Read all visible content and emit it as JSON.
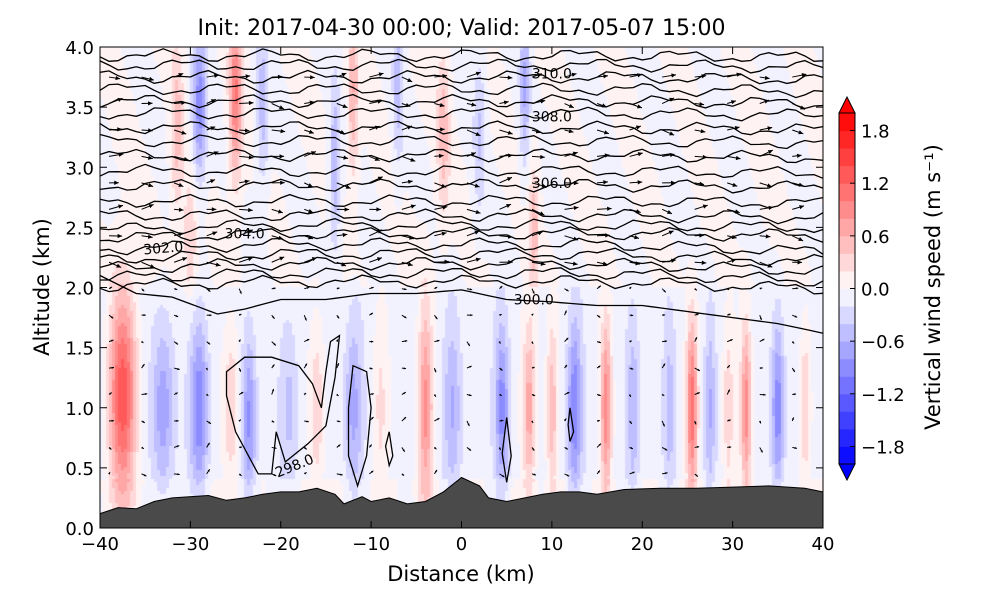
{
  "chart_data": {
    "type": "heatmap",
    "subtype": "filled contour cross-section with isentropes and wind vectors",
    "title": "Init: 2017-04-30 00:00; Valid: 2017-05-07 15:00",
    "xlabel": "Distance (km)",
    "ylabel": "Altitude (km)",
    "xlim": [
      -40,
      40
    ],
    "ylim": [
      0.0,
      4.0
    ],
    "xticks": [
      "−40",
      "−30",
      "−20",
      "−10",
      "0",
      "10",
      "20",
      "30",
      "40"
    ],
    "yticks": [
      "0.0",
      "0.5",
      "1.0",
      "1.5",
      "2.0",
      "2.5",
      "3.0",
      "3.5",
      "4.0"
    ],
    "colorbar": {
      "label": "Vertical wind speed (m s⁻¹)",
      "levels_min": -2.0,
      "levels_max": 2.0,
      "level_step": 0.2,
      "ticks": [
        "−1.8",
        "−1.2",
        "−0.6",
        "0.0",
        "0.6",
        "1.2",
        "1.8"
      ],
      "cmap": "bwr",
      "extend": "both"
    },
    "terrain_km": [
      [
        -40,
        0.12
      ],
      [
        -38,
        0.17
      ],
      [
        -36,
        0.16
      ],
      [
        -34,
        0.22
      ],
      [
        -32,
        0.25
      ],
      [
        -28,
        0.27
      ],
      [
        -26,
        0.23
      ],
      [
        -24,
        0.25
      ],
      [
        -22,
        0.28
      ],
      [
        -20,
        0.3
      ],
      [
        -18,
        0.3
      ],
      [
        -16,
        0.33
      ],
      [
        -14,
        0.28
      ],
      [
        -13,
        0.2
      ],
      [
        -11,
        0.26
      ],
      [
        -10,
        0.22
      ],
      [
        -8,
        0.25
      ],
      [
        -6,
        0.2
      ],
      [
        -4,
        0.22
      ],
      [
        -2,
        0.3
      ],
      [
        0,
        0.42
      ],
      [
        2,
        0.35
      ],
      [
        3,
        0.25
      ],
      [
        5,
        0.22
      ],
      [
        7,
        0.25
      ],
      [
        9,
        0.28
      ],
      [
        11,
        0.3
      ],
      [
        13,
        0.3
      ],
      [
        15,
        0.28
      ],
      [
        18,
        0.32
      ],
      [
        22,
        0.33
      ],
      [
        26,
        0.33
      ],
      [
        30,
        0.34
      ],
      [
        34,
        0.35
      ],
      [
        38,
        0.33
      ],
      [
        40,
        0.3
      ]
    ],
    "vertical_wind_features": [
      [
        -37.5,
        1.1,
        1.4,
        1.5,
        0.6
      ],
      [
        -33,
        1.0,
        -0.7,
        1.2,
        0.5
      ],
      [
        -29,
        1.0,
        -0.9,
        1.0,
        0.5
      ],
      [
        -25.5,
        1.0,
        0.5,
        0.9,
        0.5
      ],
      [
        -23.5,
        0.9,
        -0.8,
        0.8,
        0.5
      ],
      [
        -19,
        1.0,
        -0.4,
        1.0,
        0.5
      ],
      [
        -16,
        1.0,
        0.5,
        0.8,
        0.5
      ],
      [
        -12,
        1.0,
        -0.6,
        1.0,
        0.5
      ],
      [
        -9,
        1.0,
        0.3,
        0.8,
        0.5
      ],
      [
        -4,
        1.0,
        0.9,
        0.8,
        0.6
      ],
      [
        -1,
        1.0,
        -0.5,
        1.0,
        0.5
      ],
      [
        4.5,
        1.0,
        -0.8,
        0.8,
        0.5
      ],
      [
        7.5,
        1.0,
        0.8,
        0.7,
        0.5
      ],
      [
        10,
        1.0,
        0.6,
        0.6,
        0.5
      ],
      [
        12.5,
        1.0,
        -0.9,
        0.8,
        0.5
      ],
      [
        16,
        1.0,
        1.0,
        0.6,
        0.5
      ],
      [
        19,
        1.0,
        -0.5,
        0.7,
        0.5
      ],
      [
        23,
        1.0,
        -0.4,
        0.7,
        0.5
      ],
      [
        25.5,
        1.0,
        1.2,
        0.6,
        0.5
      ],
      [
        27.5,
        1.0,
        -0.5,
        0.6,
        0.5
      ],
      [
        29.5,
        1.0,
        0.4,
        0.6,
        0.5
      ],
      [
        31.5,
        1.0,
        1.0,
        0.6,
        0.5
      ],
      [
        35,
        1.0,
        -0.9,
        0.7,
        0.5
      ],
      [
        38,
        1.0,
        0.5,
        0.6,
        0.5
      ],
      [
        -29,
        3.5,
        -0.9,
        0.8,
        0.45
      ],
      [
        -25,
        3.6,
        1.0,
        0.7,
        0.5
      ],
      [
        -31.5,
        3.3,
        0.5,
        0.7,
        0.5
      ],
      [
        -22,
        3.5,
        -0.5,
        0.7,
        0.5
      ],
      [
        -14,
        3.0,
        -0.6,
        0.6,
        0.5
      ],
      [
        -12,
        3.6,
        0.6,
        0.6,
        0.5
      ],
      [
        -7,
        3.7,
        -0.5,
        0.6,
        0.5
      ],
      [
        -2,
        3.3,
        0.5,
        0.7,
        0.5
      ],
      [
        2,
        3.3,
        -0.4,
        0.7,
        0.5
      ],
      [
        7,
        3.7,
        -0.6,
        0.6,
        0.5
      ],
      [
        8,
        2.5,
        0.5,
        0.6,
        0.4
      ],
      [
        -30,
        2.4,
        0.4,
        0.8,
        0.4
      ]
    ],
    "isentropes_K": [
      {
        "theta": 300.0,
        "profile": [
          [
            -40,
            2.1
          ],
          [
            -36,
            1.95
          ],
          [
            -32,
            1.92
          ],
          [
            -27,
            1.78
          ],
          [
            -24,
            1.82
          ],
          [
            -20,
            1.9
          ],
          [
            -15,
            1.9
          ],
          [
            -10,
            1.95
          ],
          [
            -5,
            1.95
          ],
          [
            0,
            1.98
          ],
          [
            5,
            1.9
          ],
          [
            10,
            1.88
          ],
          [
            15,
            1.85
          ],
          [
            20,
            1.85
          ],
          [
            25,
            1.8
          ],
          [
            30,
            1.75
          ],
          [
            35,
            1.7
          ],
          [
            40,
            1.62
          ]
        ]
      },
      {
        "theta": 300.5,
        "z": 2.05
      },
      {
        "theta": 301.0,
        "z": 2.12
      },
      {
        "theta": 301.5,
        "z": 2.2
      },
      {
        "theta": 302.0,
        "z": 2.28
      },
      {
        "theta": 302.5,
        "z": 2.36
      },
      {
        "theta": 303.0,
        "z": 2.45
      },
      {
        "theta": 303.5,
        "z": 2.52
      },
      {
        "theta": 304.0,
        "z": 2.6
      },
      {
        "theta": 304.5,
        "z": 2.72
      },
      {
        "theta": 305.0,
        "z": 2.85
      },
      {
        "theta": 305.5,
        "z": 2.97
      },
      {
        "theta": 306.0,
        "z": 3.1
      },
      {
        "theta": 306.5,
        "z": 3.22
      },
      {
        "theta": 307.0,
        "z": 3.33
      },
      {
        "theta": 307.5,
        "z": 3.45
      },
      {
        "theta": 308.0,
        "z": 3.55
      },
      {
        "theta": 308.5,
        "z": 3.65
      },
      {
        "theta": 309.0,
        "z": 3.75
      },
      {
        "theta": 309.5,
        "z": 3.85
      },
      {
        "theta": 310.0,
        "z": 3.93
      }
    ],
    "theta_298_regions": [
      [
        [
          -26,
          1.3
        ],
        [
          -24,
          1.42
        ],
        [
          -21,
          1.42
        ],
        [
          -18,
          1.35
        ],
        [
          -16.5,
          1.2
        ],
        [
          -15.5,
          1.0
        ],
        [
          -15,
          1.3
        ],
        [
          -14.5,
          1.55
        ],
        [
          -13.5,
          1.6
        ],
        [
          -14,
          1.25
        ],
        [
          -15,
          0.85
        ],
        [
          -17,
          0.7
        ],
        [
          -19.5,
          0.55
        ],
        [
          -20.5,
          0.8
        ],
        [
          -21,
          0.45
        ],
        [
          -22.5,
          0.45
        ],
        [
          -25,
          0.8
        ],
        [
          -26,
          1.1
        ]
      ],
      [
        [
          -12,
          1.35
        ],
        [
          -10.5,
          1.3
        ],
        [
          -10,
          1.0
        ],
        [
          -10.5,
          0.6
        ],
        [
          -11.5,
          0.35
        ],
        [
          -12.5,
          0.6
        ],
        [
          -12.5,
          1.0
        ]
      ],
      [
        [
          -8,
          0.8
        ],
        [
          -7.6,
          0.6
        ],
        [
          -8,
          0.52
        ],
        [
          -8.4,
          0.68
        ]
      ],
      [
        [
          5,
          0.92
        ],
        [
          5.5,
          0.6
        ],
        [
          5,
          0.38
        ],
        [
          4.5,
          0.62
        ]
      ],
      [
        [
          12,
          1.0
        ],
        [
          12.4,
          0.8
        ],
        [
          12,
          0.72
        ],
        [
          11.8,
          0.86
        ]
      ]
    ],
    "contour_labels": [
      {
        "text": "298.0",
        "x": -18.5,
        "z": 0.52,
        "angle": -22
      },
      {
        "text": "300.0",
        "x": 8,
        "z": 1.9,
        "angle": 0
      },
      {
        "text": "302.0",
        "x": -33,
        "z": 2.33,
        "angle": -5
      },
      {
        "text": "304.0",
        "x": -24,
        "z": 2.45,
        "angle": 0
      },
      {
        "text": "306.0",
        "x": 10,
        "z": 2.87,
        "angle": 0
      },
      {
        "text": "308.0",
        "x": 10,
        "z": 3.42,
        "angle": 0
      },
      {
        "text": "310.0",
        "x": 10,
        "z": 3.78,
        "angle": 0
      }
    ]
  }
}
